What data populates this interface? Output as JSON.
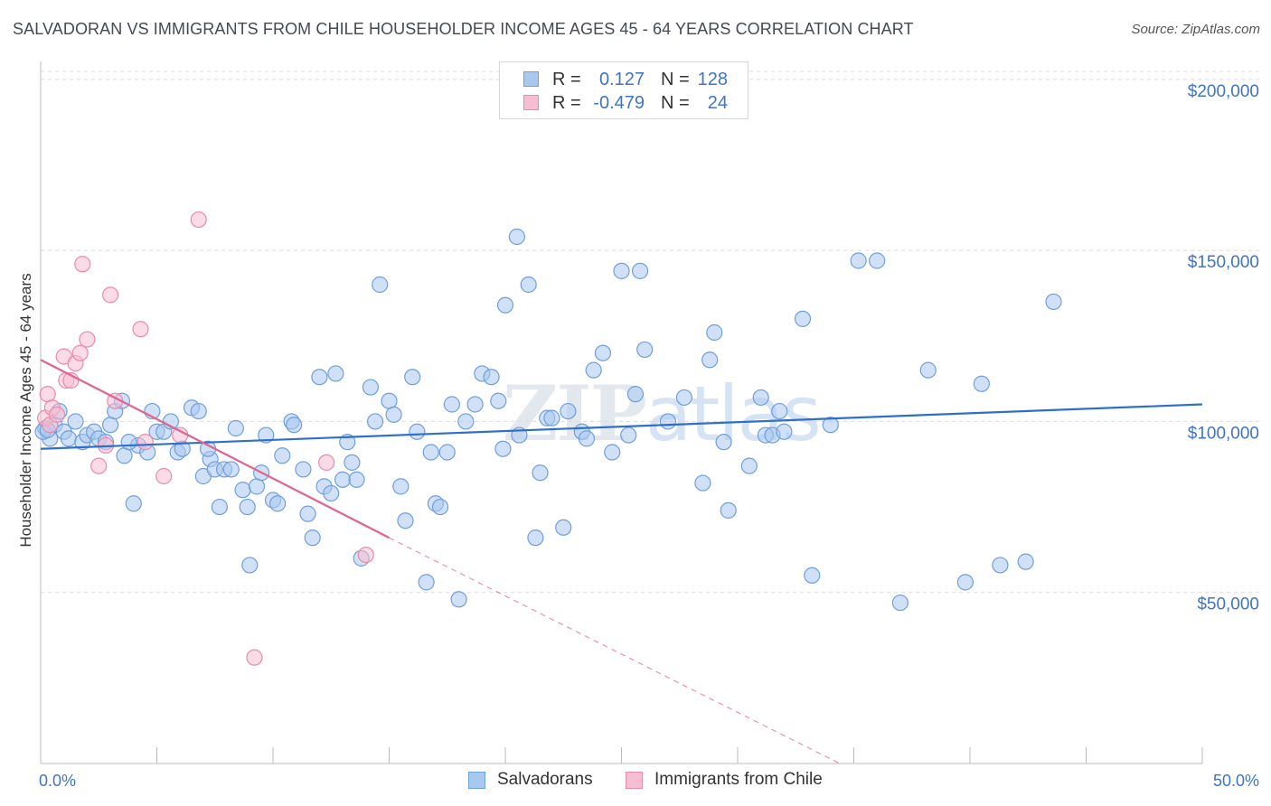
{
  "title": "SALVADORAN VS IMMIGRANTS FROM CHILE HOUSEHOLDER INCOME AGES 45 - 64 YEARS CORRELATION CHART",
  "source": "Source: ZipAtlas.com",
  "watermark": {
    "zip": "ZIP",
    "atlas": "atlas"
  },
  "legend": {
    "rows": [
      {
        "r_label": "R =",
        "r_value": "0.127",
        "n_label": "N =",
        "n_value": "128",
        "color": "#a9c8f0",
        "edge": "#6f9fdc"
      },
      {
        "r_label": "R =",
        "r_value": "-0.479",
        "n_label": "N =",
        "n_value": "24",
        "color": "#f7bdd0",
        "edge": "#e98bab"
      }
    ]
  },
  "bottom_legend": [
    {
      "label": "Salvadorans",
      "color": "#a9c8f0",
      "edge": "#6f9fdc"
    },
    {
      "label": "Immigrants from Chile",
      "color": "#f7bdd0",
      "edge": "#e98bab"
    }
  ],
  "chart_data": {
    "type": "scatter",
    "xlabel": "",
    "ylabel": "Householder Income Ages 45 - 64 years",
    "xlim": [
      0,
      50
    ],
    "ylim": [
      0,
      210000
    ],
    "x_tick_labels": [
      {
        "value": 0,
        "label": "0.0%"
      },
      {
        "value": 50,
        "label": "50.0%"
      }
    ],
    "x_minor_ticks": [
      5,
      10,
      15,
      20,
      25,
      30,
      35,
      40,
      45,
      50
    ],
    "y_ticks": [
      {
        "value": 50000,
        "label": "$50,000"
      },
      {
        "value": 100000,
        "label": "$100,000"
      },
      {
        "value": 150000,
        "label": "$150,000"
      },
      {
        "value": 200000,
        "label": "$200,000"
      }
    ],
    "grid": true,
    "series": [
      {
        "name": "Salvadorans",
        "color": "#a9c8f0",
        "edge": "#6f9fdc",
        "trend": {
          "x": [
            0,
            50
          ],
          "y": [
            92000,
            105000
          ],
          "color": "#2f6fcc"
        },
        "points": [
          [
            0.2,
            98000
          ],
          [
            0.4,
            95000
          ],
          [
            0.6,
            99000
          ],
          [
            0.8,
            103000
          ],
          [
            1.0,
            97000
          ],
          [
            1.2,
            95000
          ],
          [
            1.5,
            100000
          ],
          [
            1.8,
            94000
          ],
          [
            2.0,
            96000
          ],
          [
            2.3,
            97000
          ],
          [
            2.5,
            95000
          ],
          [
            2.8,
            94000
          ],
          [
            3.0,
            99000
          ],
          [
            3.2,
            103000
          ],
          [
            3.5,
            106000
          ],
          [
            3.6,
            90000
          ],
          [
            4.0,
            76000
          ],
          [
            4.2,
            93000
          ],
          [
            4.6,
            91000
          ],
          [
            4.8,
            103000
          ],
          [
            5.0,
            97000
          ],
          [
            5.3,
            97000
          ],
          [
            5.6,
            100000
          ],
          [
            5.9,
            91000
          ],
          [
            6.1,
            92000
          ],
          [
            6.5,
            104000
          ],
          [
            6.8,
            103000
          ],
          [
            7.0,
            84000
          ],
          [
            7.3,
            89000
          ],
          [
            7.5,
            86000
          ],
          [
            7.7,
            75000
          ],
          [
            7.9,
            86000
          ],
          [
            8.2,
            86000
          ],
          [
            8.4,
            98000
          ],
          [
            8.7,
            80000
          ],
          [
            8.9,
            75000
          ],
          [
            9.0,
            58000
          ],
          [
            9.3,
            81000
          ],
          [
            9.5,
            85000
          ],
          [
            9.7,
            96000
          ],
          [
            10.0,
            77000
          ],
          [
            10.2,
            76000
          ],
          [
            10.4,
            90000
          ],
          [
            10.8,
            100000
          ],
          [
            10.9,
            99000
          ],
          [
            11.3,
            86000
          ],
          [
            11.5,
            73000
          ],
          [
            11.7,
            66000
          ],
          [
            12.0,
            113000
          ],
          [
            12.2,
            81000
          ],
          [
            12.5,
            79000
          ],
          [
            12.7,
            114000
          ],
          [
            13.0,
            83000
          ],
          [
            13.2,
            94000
          ],
          [
            13.4,
            88000
          ],
          [
            13.6,
            83000
          ],
          [
            13.8,
            60000
          ],
          [
            14.2,
            110000
          ],
          [
            14.4,
            100000
          ],
          [
            14.6,
            140000
          ],
          [
            15.0,
            106000
          ],
          [
            15.2,
            102000
          ],
          [
            15.5,
            81000
          ],
          [
            15.7,
            71000
          ],
          [
            16.0,
            113000
          ],
          [
            16.2,
            97000
          ],
          [
            16.6,
            53000
          ],
          [
            16.8,
            91000
          ],
          [
            17.0,
            76000
          ],
          [
            17.2,
            75000
          ],
          [
            17.5,
            91000
          ],
          [
            17.7,
            105000
          ],
          [
            18.0,
            48000
          ],
          [
            18.3,
            100000
          ],
          [
            18.7,
            105000
          ],
          [
            19.0,
            114000
          ],
          [
            19.4,
            113000
          ],
          [
            19.7,
            106000
          ],
          [
            19.9,
            92000
          ],
          [
            20.0,
            134000
          ],
          [
            20.5,
            154000
          ],
          [
            20.6,
            96000
          ],
          [
            21.0,
            140000
          ],
          [
            21.3,
            66000
          ],
          [
            21.5,
            85000
          ],
          [
            21.8,
            101000
          ],
          [
            22.0,
            101000
          ],
          [
            22.5,
            69000
          ],
          [
            22.7,
            103000
          ],
          [
            23.3,
            97000
          ],
          [
            23.5,
            95000
          ],
          [
            23.8,
            115000
          ],
          [
            24.2,
            120000
          ],
          [
            24.6,
            91000
          ],
          [
            25.0,
            144000
          ],
          [
            25.3,
            96000
          ],
          [
            25.6,
            108000
          ],
          [
            25.8,
            144000
          ],
          [
            26.0,
            121000
          ],
          [
            27.0,
            100000
          ],
          [
            27.7,
            107000
          ],
          [
            28.5,
            82000
          ],
          [
            28.8,
            118000
          ],
          [
            29.0,
            126000
          ],
          [
            29.4,
            94000
          ],
          [
            29.6,
            74000
          ],
          [
            30.5,
            87000
          ],
          [
            31.0,
            107000
          ],
          [
            31.2,
            96000
          ],
          [
            31.5,
            96000
          ],
          [
            31.8,
            103000
          ],
          [
            32.0,
            97000
          ],
          [
            32.8,
            130000
          ],
          [
            33.2,
            55000
          ],
          [
            34.0,
            99000
          ],
          [
            35.2,
            147000
          ],
          [
            36.0,
            147000
          ],
          [
            37.0,
            47000
          ],
          [
            38.2,
            115000
          ],
          [
            39.8,
            53000
          ],
          [
            40.5,
            111000
          ],
          [
            41.3,
            58000
          ],
          [
            42.4,
            59000
          ],
          [
            43.6,
            135000
          ],
          [
            0.1,
            97000
          ],
          [
            0.3,
            97500
          ],
          [
            3.8,
            94000
          ],
          [
            7.2,
            92000
          ]
        ]
      },
      {
        "name": "Immigrants from Chile",
        "color": "#f7bdd0",
        "edge": "#e98bab",
        "trend": {
          "x": [
            0,
            15
          ],
          "y": [
            118000,
            66000
          ],
          "dash_x": [
            15,
            34.4
          ],
          "dash_y": [
            66000,
            0
          ],
          "color": "#e0648f"
        },
        "points": [
          [
            0.2,
            101000
          ],
          [
            0.3,
            108000
          ],
          [
            0.4,
            99000
          ],
          [
            0.5,
            104000
          ],
          [
            0.7,
            102000
          ],
          [
            1.0,
            119000
          ],
          [
            1.1,
            112000
          ],
          [
            1.3,
            112000
          ],
          [
            1.5,
            117000
          ],
          [
            1.7,
            120000
          ],
          [
            2.0,
            124000
          ],
          [
            2.5,
            87000
          ],
          [
            2.8,
            93000
          ],
          [
            3.0,
            137000
          ],
          [
            3.2,
            106000
          ],
          [
            4.3,
            127000
          ],
          [
            4.5,
            94000
          ],
          [
            5.3,
            84000
          ],
          [
            6.0,
            96000
          ],
          [
            6.8,
            159000
          ],
          [
            9.2,
            31000
          ],
          [
            12.3,
            88000
          ],
          [
            14.0,
            61000
          ],
          [
            1.8,
            146000
          ]
        ]
      }
    ]
  }
}
